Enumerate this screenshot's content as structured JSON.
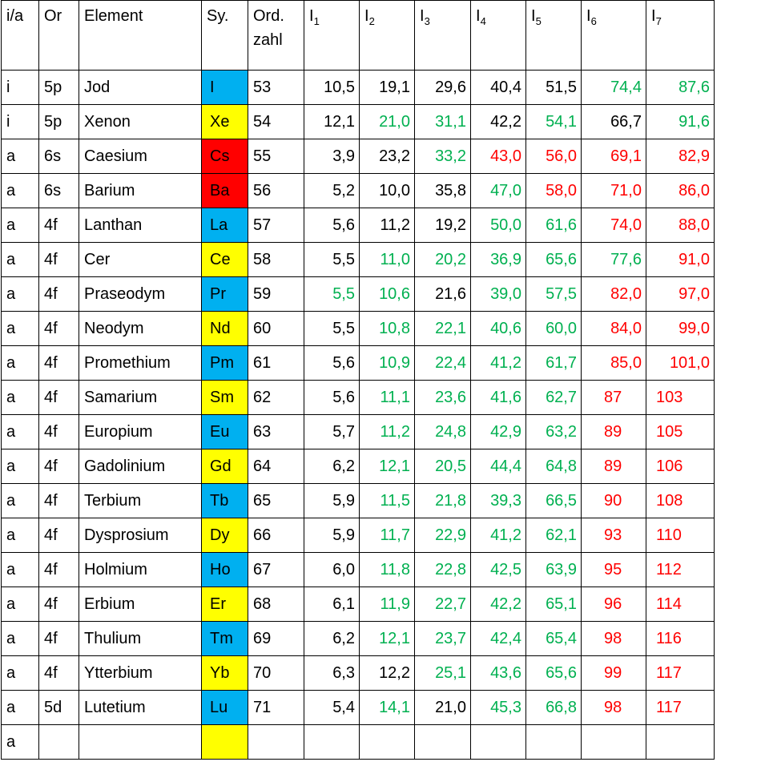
{
  "colors": {
    "green": "#00b050",
    "red": "#ff0000",
    "black": "#000000",
    "cell_blue": "#00b0f0",
    "cell_yellow": "#ffff00",
    "cell_red": "#ff0000"
  },
  "headers": [
    {
      "text": "i/a"
    },
    {
      "text": "Or"
    },
    {
      "text": "Element"
    },
    {
      "text": "Sy."
    },
    {
      "text": "Ord. zahl"
    },
    {
      "text": "I",
      "sub": "1"
    },
    {
      "text": "I",
      "sub": "2"
    },
    {
      "text": "I",
      "sub": "3"
    },
    {
      "text": "I",
      "sub": "4"
    },
    {
      "text": "I",
      "sub": "5"
    },
    {
      "text": "I",
      "sub": "6"
    },
    {
      "text": "I",
      "sub": "7"
    }
  ],
  "rows": [
    {
      "ia": "i",
      "or": "5p",
      "element": "Jod",
      "sym": "I",
      "sym_bg": "blue",
      "z": "53",
      "I": [
        "10,5",
        "19,1",
        "29,6",
        "40,4",
        "51,5",
        "74,4",
        "87,6"
      ],
      "c": [
        "k",
        "k",
        "k",
        "k",
        "k",
        "g",
        "g"
      ]
    },
    {
      "ia": "i",
      "or": "5p",
      "element": "Xenon",
      "sym": "Xe",
      "sym_bg": "yellow",
      "z": "54",
      "I": [
        "12,1",
        "21,0",
        "31,1",
        "42,2",
        "54,1",
        "66,7",
        "91,6"
      ],
      "c": [
        "k",
        "g",
        "g",
        "k",
        "g",
        "k",
        "g"
      ]
    },
    {
      "ia": "a",
      "or": "6s",
      "element": "Caesium",
      "sym": "Cs",
      "sym_bg": "red",
      "z": "55",
      "I": [
        "3,9",
        "23,2",
        "33,2",
        "43,0",
        "56,0",
        "69,1",
        "82,9"
      ],
      "c": [
        "k",
        "k",
        "g",
        "r",
        "r",
        "r",
        "r"
      ]
    },
    {
      "ia": "a",
      "or": "6s",
      "element": "Barium",
      "sym": "Ba",
      "sym_bg": "red",
      "z": "56",
      "I": [
        "5,2",
        "10,0",
        "35,8",
        "47,0",
        "58,0",
        "71,0",
        "86,0"
      ],
      "c": [
        "k",
        "k",
        "k",
        "g",
        "r",
        "r",
        "r"
      ]
    },
    {
      "ia": "a",
      "or": "4f",
      "element": "Lanthan",
      "sym": "La",
      "sym_bg": "blue",
      "z": "57",
      "I": [
        "5,6",
        "11,2",
        "19,2",
        "50,0",
        "61,6",
        "74,0",
        "88,0"
      ],
      "c": [
        "k",
        "k",
        "k",
        "g",
        "g",
        "r",
        "r"
      ]
    },
    {
      "ia": "a",
      "or": "4f",
      "element": "Cer",
      "sym": "Ce",
      "sym_bg": "yellow",
      "z": "58",
      "I": [
        "5,5",
        "11,0",
        "20,2",
        "36,9",
        "65,6",
        "77,6",
        "91,0"
      ],
      "c": [
        "k",
        "g",
        "g",
        "g",
        "g",
        "g",
        "r"
      ]
    },
    {
      "ia": "a",
      "or": "4f",
      "element": "Praseodym",
      "sym": "Pr",
      "sym_bg": "blue",
      "z": "59",
      "I": [
        "5,5",
        "10,6",
        "21,6",
        "39,0",
        "57,5",
        "82,0",
        "97,0"
      ],
      "c": [
        "g",
        "g",
        "k",
        "g",
        "g",
        "r",
        "r"
      ]
    },
    {
      "ia": "a",
      "or": "4f",
      "element": "Neodym",
      "sym": "Nd",
      "sym_bg": "yellow",
      "z": "60",
      "I": [
        "5,5",
        "10,8",
        "22,1",
        "40,6",
        "60,0",
        "84,0",
        "99,0"
      ],
      "c": [
        "k",
        "g",
        "g",
        "g",
        "g",
        "r",
        "r"
      ]
    },
    {
      "ia": "a",
      "or": "4f",
      "element": "Promethium",
      "sym": "Pm",
      "sym_bg": "blue",
      "z": "61",
      "I": [
        "5,6",
        "10,9",
        "22,4",
        "41,2",
        "61,7",
        "85,0",
        "101,0"
      ],
      "c": [
        "k",
        "g",
        "g",
        "g",
        "g",
        "r",
        "r"
      ]
    },
    {
      "ia": "a",
      "or": "4f",
      "element": "Samarium",
      "sym": "Sm",
      "sym_bg": "yellow",
      "z": "62",
      "I": [
        "5,6",
        "11,1",
        "23,6",
        "41,6",
        "62,7",
        "87",
        "103"
      ],
      "c": [
        "k",
        "g",
        "g",
        "g",
        "g",
        "r",
        "r"
      ]
    },
    {
      "ia": "a",
      "or": "4f",
      "element": "Europium",
      "sym": "Eu",
      "sym_bg": "blue",
      "z": "63",
      "I": [
        "5,7",
        "11,2",
        "24,8",
        "42,9",
        "63,2",
        "89",
        "105"
      ],
      "c": [
        "k",
        "g",
        "g",
        "g",
        "g",
        "r",
        "r"
      ]
    },
    {
      "ia": "a",
      "or": "4f",
      "element": "Gadolinium",
      "sym": "Gd",
      "sym_bg": "yellow",
      "z": "64",
      "I": [
        "6,2",
        "12,1",
        "20,5",
        "44,4",
        "64,8",
        "89",
        "106"
      ],
      "c": [
        "k",
        "g",
        "g",
        "g",
        "g",
        "r",
        "r"
      ]
    },
    {
      "ia": "a",
      "or": "4f",
      "element": "Terbium",
      "sym": "Tb",
      "sym_bg": "blue",
      "z": "65",
      "I": [
        "5,9",
        "11,5",
        "21,8",
        "39,3",
        "66,5",
        "90",
        "108"
      ],
      "c": [
        "k",
        "g",
        "g",
        "g",
        "g",
        "r",
        "r"
      ]
    },
    {
      "ia": "a",
      "or": "4f",
      "element": "Dysprosium",
      "sym": "Dy",
      "sym_bg": "yellow",
      "z": "66",
      "I": [
        "5,9",
        "11,7",
        "22,9",
        "41,2",
        "62,1",
        "93",
        "110"
      ],
      "c": [
        "k",
        "g",
        "g",
        "g",
        "g",
        "r",
        "r"
      ]
    },
    {
      "ia": "a",
      "or": "4f",
      "element": "Holmium",
      "sym": "Ho",
      "sym_bg": "blue",
      "z": "67",
      "I": [
        "6,0",
        "11,8",
        "22,8",
        "42,5",
        "63,9",
        "95",
        "112"
      ],
      "c": [
        "k",
        "g",
        "g",
        "g",
        "g",
        "r",
        "r"
      ]
    },
    {
      "ia": "a",
      "or": "4f",
      "element": "Erbium",
      "sym": "Er",
      "sym_bg": "yellow",
      "z": "68",
      "I": [
        "6,1",
        "11,9",
        "22,7",
        "42,2",
        "65,1",
        "96",
        "114"
      ],
      "c": [
        "k",
        "g",
        "g",
        "g",
        "g",
        "r",
        "r"
      ]
    },
    {
      "ia": "a",
      "or": "4f",
      "element": "Thulium",
      "sym": "Tm",
      "sym_bg": "blue",
      "z": "69",
      "I": [
        "6,2",
        "12,1",
        "23,7",
        "42,4",
        "65,4",
        "98",
        "116"
      ],
      "c": [
        "k",
        "g",
        "g",
        "g",
        "g",
        "r",
        "r"
      ]
    },
    {
      "ia": "a",
      "or": "4f",
      "element": "Ytterbium",
      "sym": "Yb",
      "sym_bg": "yellow",
      "z": "70",
      "I": [
        "6,3",
        "12,2",
        "25,1",
        "43,6",
        "65,6",
        "99",
        "117"
      ],
      "c": [
        "k",
        "k",
        "g",
        "g",
        "g",
        "r",
        "r"
      ]
    },
    {
      "ia": "a",
      "or": "5d",
      "element": "Lutetium",
      "sym": "Lu",
      "sym_bg": "blue",
      "z": "71",
      "I": [
        "5,4",
        "14,1",
        "21,0",
        "45,3",
        "66,8",
        "98",
        "117"
      ],
      "c": [
        "k",
        "g",
        "k",
        "g",
        "g",
        "r",
        "r"
      ]
    },
    {
      "ia": "a",
      "or": "",
      "element": "",
      "sym": "",
      "sym_bg": "yellow",
      "z": "",
      "I": [
        "",
        "",
        "",
        "",
        "",
        "",
        ""
      ],
      "c": [
        "k",
        "k",
        "k",
        "k",
        "k",
        "k",
        "k"
      ]
    }
  ]
}
